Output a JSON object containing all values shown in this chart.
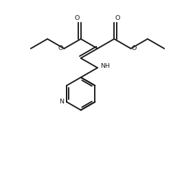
{
  "bg_color": "#ffffff",
  "line_color": "#1a1a1a",
  "line_width": 1.4,
  "figsize": [
    2.84,
    2.54
  ],
  "dpi": 100,
  "xlim": [
    0,
    10
  ],
  "ylim": [
    0,
    9
  ]
}
